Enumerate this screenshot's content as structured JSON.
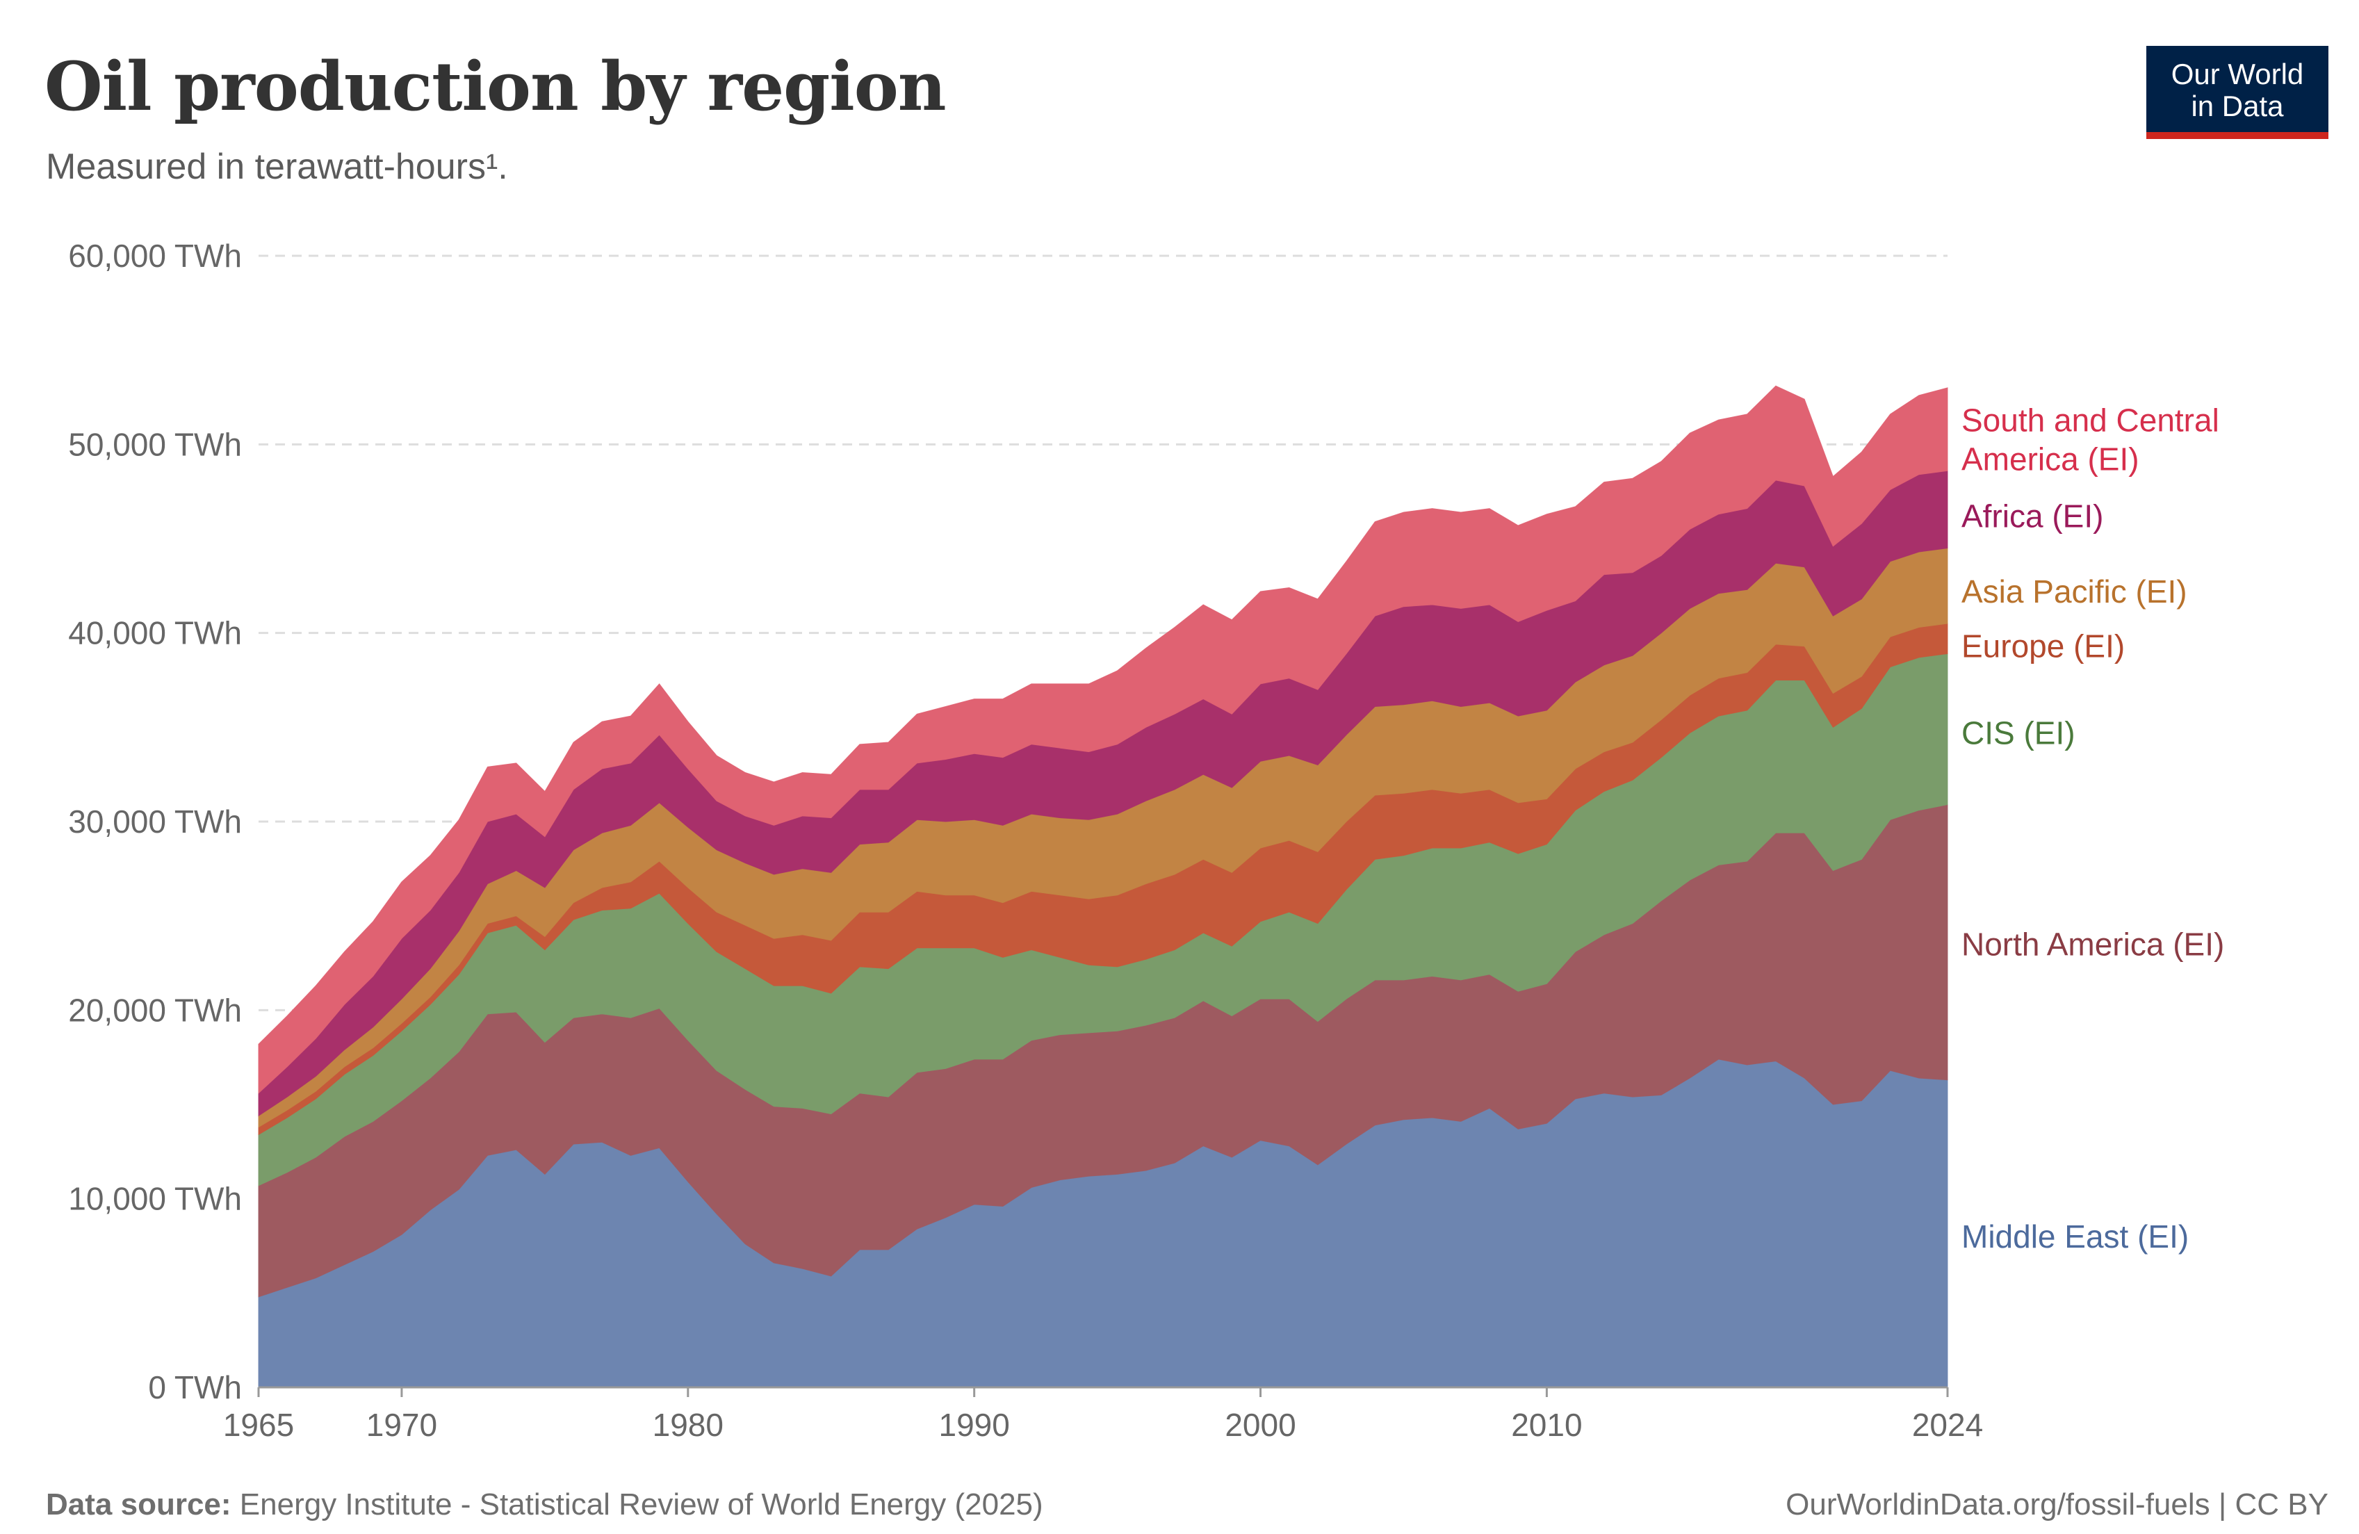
{
  "header": {
    "title": "Oil production by region",
    "subtitle": "Measured in terawatt-hours¹.",
    "logo_line1": "Our World",
    "logo_line2": "in Data"
  },
  "footer": {
    "source_label": "Data source:",
    "source_text": "Energy Institute - Statistical Review of World Energy (2025)",
    "credit": "OurWorldinData.org/fossil-fuels | CC BY"
  },
  "chart_data": {
    "type": "area",
    "stacked": true,
    "ylim": [
      0,
      60000
    ],
    "xlim": [
      1965,
      2024
    ],
    "grid": true,
    "y_ticks": [
      {
        "value": 0,
        "label": "0 TWh"
      },
      {
        "value": 10000,
        "label": "10,000 TWh"
      },
      {
        "value": 20000,
        "label": "20,000 TWh"
      },
      {
        "value": 30000,
        "label": "30,000 TWh"
      },
      {
        "value": 40000,
        "label": "40,000 TWh"
      },
      {
        "value": 50000,
        "label": "50,000 TWh"
      },
      {
        "value": 60000,
        "label": "60,000 TWh"
      }
    ],
    "x_ticks": [
      {
        "value": 1965,
        "label": "1965"
      },
      {
        "value": 1970,
        "label": "1970"
      },
      {
        "value": 1980,
        "label": "1980"
      },
      {
        "value": 1990,
        "label": "1990"
      },
      {
        "value": 2000,
        "label": "2000"
      },
      {
        "value": 2010,
        "label": "2010"
      },
      {
        "value": 2024,
        "label": "2024"
      }
    ],
    "legend_placement": "right",
    "x": [
      1965,
      1966,
      1967,
      1968,
      1969,
      1970,
      1971,
      1972,
      1973,
      1974,
      1975,
      1976,
      1977,
      1978,
      1979,
      1980,
      1981,
      1982,
      1983,
      1984,
      1985,
      1986,
      1987,
      1988,
      1989,
      1990,
      1991,
      1992,
      1993,
      1994,
      1995,
      1996,
      1997,
      1998,
      1999,
      2000,
      2001,
      2002,
      2003,
      2004,
      2005,
      2006,
      2007,
      2008,
      2009,
      2010,
      2011,
      2012,
      2013,
      2014,
      2015,
      2016,
      2017,
      2018,
      2019,
      2020,
      2021,
      2022,
      2023,
      2024
    ],
    "series": [
      {
        "name": "Middle East (EI)",
        "color": "#6d85b0",
        "label_color": "#4c6a9c",
        "values": [
          4800,
          5300,
          5800,
          6500,
          7200,
          8100,
          9400,
          10500,
          12300,
          12600,
          11300,
          12900,
          13000,
          12300,
          12700,
          10900,
          9200,
          7600,
          6600,
          6300,
          5900,
          7300,
          7300,
          8400,
          9000,
          9700,
          9600,
          10600,
          11000,
          11200,
          11300,
          11500,
          11900,
          12800,
          12200,
          13100,
          12800,
          11800,
          12900,
          13900,
          14200,
          14300,
          14100,
          14800,
          13700,
          14000,
          15300,
          15600,
          15400,
          15500,
          16400,
          17400,
          17100,
          17300,
          16400,
          15000,
          15200,
          16800,
          16400,
          16300
        ]
      },
      {
        "name": "North America (EI)",
        "color": "#9e5a60",
        "label_color": "#8a3c44",
        "values": [
          5900,
          6100,
          6400,
          6800,
          6900,
          7100,
          7000,
          7300,
          7500,
          7300,
          7000,
          6700,
          6800,
          7300,
          7400,
          7500,
          7600,
          8200,
          8300,
          8500,
          8600,
          8300,
          8100,
          8300,
          7900,
          7700,
          7800,
          7800,
          7700,
          7600,
          7600,
          7700,
          7700,
          7700,
          7500,
          7500,
          7800,
          7600,
          7700,
          7700,
          7400,
          7500,
          7500,
          7100,
          7300,
          7400,
          7800,
          8400,
          9200,
          10300,
          10500,
          10300,
          10800,
          12100,
          13000,
          12400,
          12800,
          13300,
          14200,
          14600
        ]
      },
      {
        "name": "CIS (EI)",
        "color": "#7a9c6a",
        "label_color": "#4a7a3b",
        "values": [
          2700,
          2900,
          3100,
          3300,
          3500,
          3700,
          3900,
          4100,
          4300,
          4600,
          4900,
          5200,
          5500,
          5800,
          6100,
          6200,
          6300,
          6400,
          6400,
          6500,
          6400,
          6700,
          6800,
          6600,
          6400,
          5900,
          5400,
          4800,
          4100,
          3600,
          3400,
          3500,
          3600,
          3600,
          3700,
          4100,
          4600,
          5200,
          5800,
          6400,
          6600,
          6800,
          7000,
          7000,
          7300,
          7400,
          7500,
          7600,
          7600,
          7600,
          7800,
          7900,
          8000,
          8100,
          8100,
          7600,
          8000,
          8100,
          8100,
          8000
        ]
      },
      {
        "name": "Europe (EI)",
        "color": "#c5593a",
        "label_color": "#b2482c",
        "values": [
          400,
          400,
          400,
          400,
          400,
          400,
          400,
          500,
          500,
          500,
          700,
          900,
          1200,
          1400,
          1700,
          1900,
          2100,
          2300,
          2500,
          2700,
          2800,
          2900,
          3000,
          3000,
          2800,
          2800,
          2900,
          3100,
          3300,
          3500,
          3800,
          4000,
          4000,
          3900,
          3900,
          3900,
          3800,
          3800,
          3600,
          3400,
          3300,
          3100,
          2900,
          2800,
          2700,
          2400,
          2200,
          2100,
          2000,
          2000,
          2000,
          2000,
          2000,
          1900,
          1800,
          1800,
          1700,
          1600,
          1600,
          1600
        ]
      },
      {
        "name": "Asia Pacific (EI)",
        "color": "#c28444",
        "label_color": "#b8722c",
        "values": [
          600,
          700,
          800,
          900,
          1100,
          1300,
          1500,
          1800,
          2100,
          2400,
          2600,
          2800,
          2900,
          3000,
          3100,
          3200,
          3300,
          3300,
          3400,
          3500,
          3600,
          3600,
          3700,
          3800,
          3900,
          4000,
          4100,
          4100,
          4100,
          4200,
          4300,
          4400,
          4500,
          4500,
          4500,
          4600,
          4500,
          4600,
          4600,
          4700,
          4700,
          4700,
          4600,
          4600,
          4600,
          4700,
          4600,
          4600,
          4600,
          4600,
          4600,
          4500,
          4400,
          4300,
          4200,
          4100,
          4100,
          4000,
          4000,
          4000
        ]
      },
      {
        "name": "Africa (EI)",
        "color": "#a8306a",
        "label_color": "#9a1a5a",
        "values": [
          1200,
          1600,
          2000,
          2400,
          2700,
          3200,
          3100,
          3100,
          3300,
          3000,
          2700,
          3200,
          3400,
          3300,
          3600,
          3100,
          2600,
          2500,
          2600,
          2800,
          2900,
          2900,
          2800,
          3000,
          3300,
          3500,
          3600,
          3700,
          3700,
          3600,
          3700,
          3900,
          4000,
          4000,
          3900,
          4100,
          4100,
          4000,
          4300,
          4800,
          5200,
          5100,
          5200,
          5200,
          5000,
          5300,
          4300,
          4800,
          4400,
          4100,
          4200,
          4200,
          4300,
          4400,
          4300,
          3700,
          4000,
          3800,
          4100,
          4100
        ]
      },
      {
        "name": "South and Central America (EI)",
        "color": "#e06272",
        "label_color": "#d62f4c",
        "values": [
          2600,
          2700,
          2800,
          2800,
          2900,
          3000,
          2900,
          2800,
          2900,
          2700,
          2400,
          2500,
          2500,
          2500,
          2700,
          2500,
          2400,
          2300,
          2300,
          2300,
          2300,
          2400,
          2500,
          2600,
          2800,
          2900,
          3100,
          3200,
          3400,
          3600,
          3900,
          4200,
          4600,
          5000,
          5000,
          4900,
          4800,
          4800,
          4900,
          5000,
          5000,
          5100,
          5100,
          5100,
          5100,
          5100,
          5000,
          4900,
          5000,
          5000,
          5100,
          5000,
          5000,
          5000,
          4600,
          3700,
          3800,
          4000,
          4200,
          4400
        ]
      }
    ]
  }
}
